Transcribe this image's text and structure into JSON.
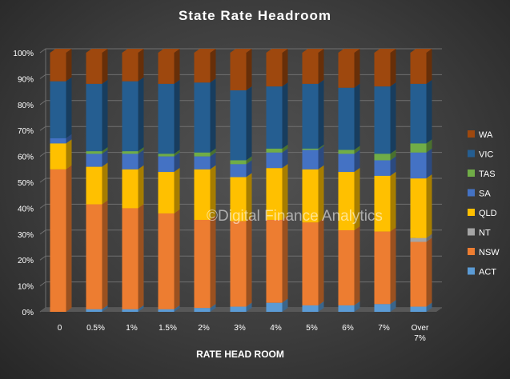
{
  "chart_data": {
    "type": "bar",
    "stacked": true,
    "percent": true,
    "title": "State Rate Headroom",
    "xlabel": "RATE HEAD ROOM",
    "ylabel": "",
    "watermark": "©Digital Finance Analytics",
    "ylim": [
      0,
      100
    ],
    "yticks": [
      "0%",
      "10%",
      "20%",
      "30%",
      "40%",
      "50%",
      "60%",
      "70%",
      "80%",
      "90%",
      "100%"
    ],
    "grid": true,
    "legend_position": "right",
    "categories": [
      "0",
      "0.5%",
      "1%",
      "1.5%",
      "2%",
      "3%",
      "4%",
      "5%",
      "6%",
      "7%",
      "Over 7%"
    ],
    "series": [
      {
        "name": "ACT",
        "color": "#5b9bd5",
        "values": [
          0,
          1,
          1,
          1,
          1.5,
          2,
          3.5,
          2.5,
          2.5,
          3,
          2
        ]
      },
      {
        "name": "NSW",
        "color": "#ed7d31",
        "values": [
          55,
          40.5,
          39,
          37,
          34,
          33,
          32,
          32,
          29,
          28,
          25
        ]
      },
      {
        "name": "NT",
        "color": "#a5a5a5",
        "values": [
          0,
          0,
          0,
          0,
          0,
          0,
          0,
          0,
          0,
          0,
          1.5
        ]
      },
      {
        "name": "QLD",
        "color": "#ffc000",
        "values": [
          10,
          14.5,
          15,
          16,
          19.5,
          17,
          20,
          20.5,
          22.5,
          21.5,
          23
        ]
      },
      {
        "name": "SA",
        "color": "#4472c4",
        "values": [
          2,
          5,
          6,
          6,
          5,
          5,
          6,
          7.5,
          7,
          6,
          10
        ]
      },
      {
        "name": "TAS",
        "color": "#70ad47",
        "values": [
          0,
          1,
          1,
          1,
          1.5,
          1.5,
          1.5,
          0.5,
          1.5,
          2.5,
          3.5
        ]
      },
      {
        "name": "VIC",
        "color": "#255e91",
        "values": [
          22,
          26,
          27,
          27,
          27,
          27,
          24,
          25,
          24,
          26,
          23
        ]
      },
      {
        "name": "WA",
        "color": "#9e480e",
        "values": [
          11,
          12,
          11,
          12,
          11.5,
          14.5,
          13,
          12,
          13.5,
          13,
          12
        ]
      }
    ]
  }
}
